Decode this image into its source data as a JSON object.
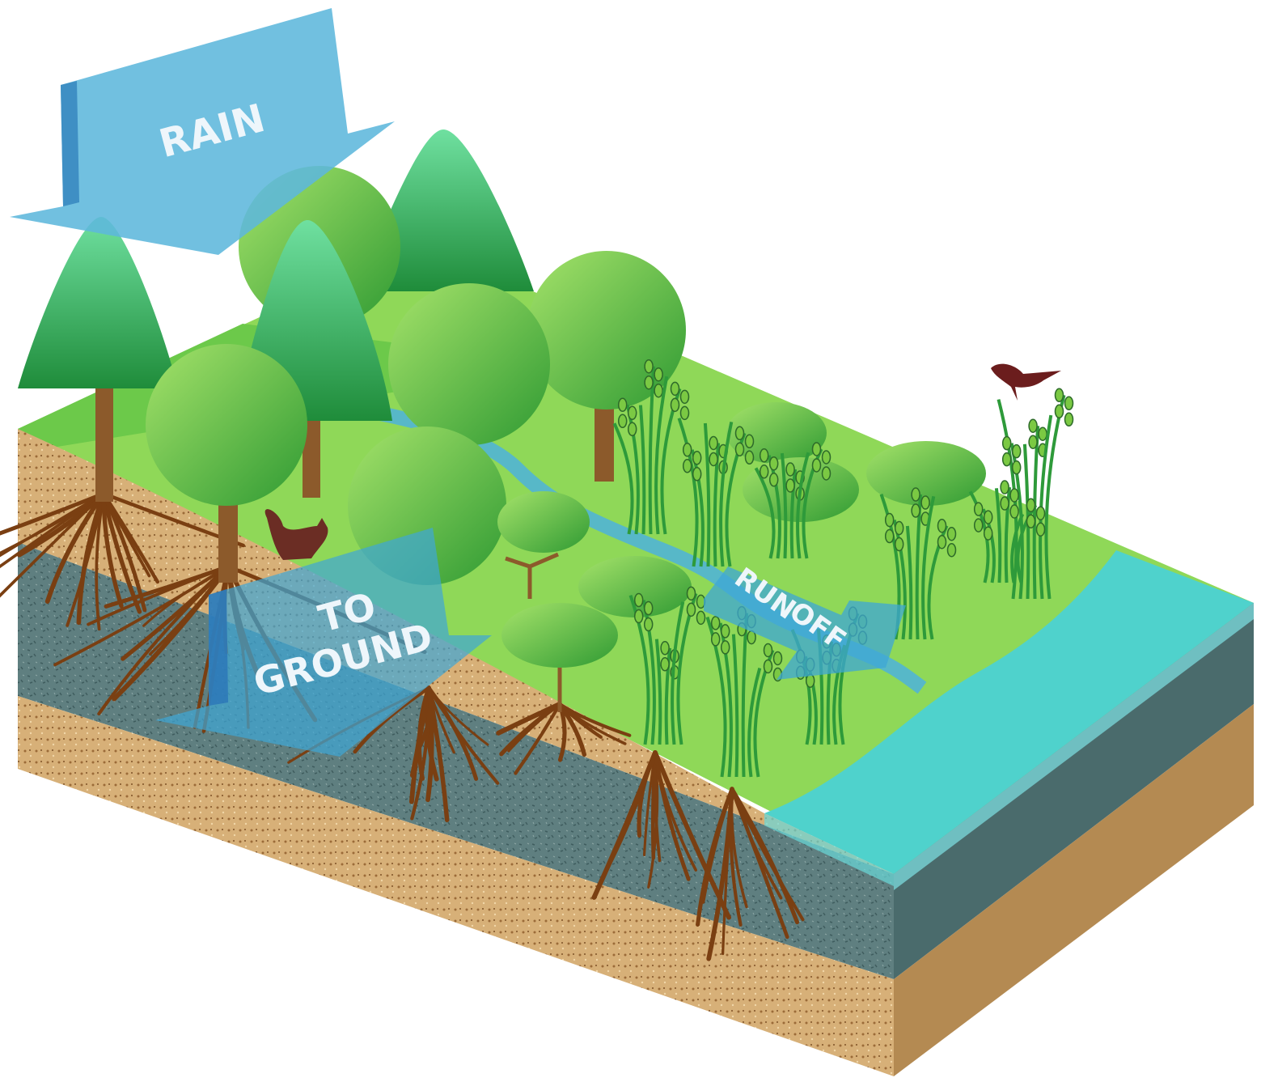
{
  "arrows": [
    {
      "lines": [
        "RAIN"
      ]
    },
    {
      "lines": [
        "TO",
        "GROUND"
      ]
    },
    {
      "lines": [
        "RUN",
        "OFF"
      ]
    }
  ]
}
